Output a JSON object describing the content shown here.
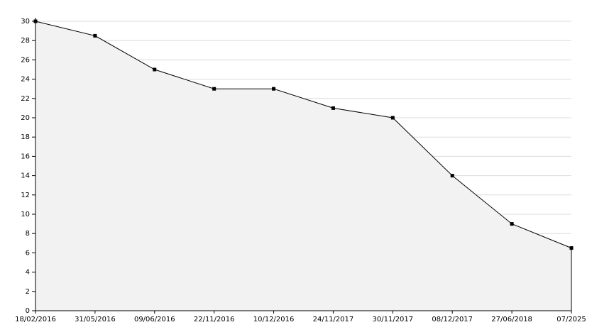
{
  "chart_data": {
    "type": "area",
    "categories": [
      "18/02/2016",
      "31/05/2016",
      "09/06/2016",
      "22/11/2016",
      "10/12/2016",
      "24/11/2017",
      "30/11/2017",
      "08/12/2017",
      "27/06/2018",
      "07/2025"
    ],
    "values": [
      30,
      28.5,
      25,
      23,
      23,
      21,
      20,
      14,
      9,
      6.5
    ],
    "color": "#000000",
    "fill": "#f2f2f2",
    "ylim": [
      0,
      30
    ],
    "yticks": [
      0,
      2,
      4,
      6,
      8,
      10,
      12,
      14,
      16,
      18,
      20,
      22,
      24,
      26,
      28,
      30
    ],
    "grid": true
  }
}
